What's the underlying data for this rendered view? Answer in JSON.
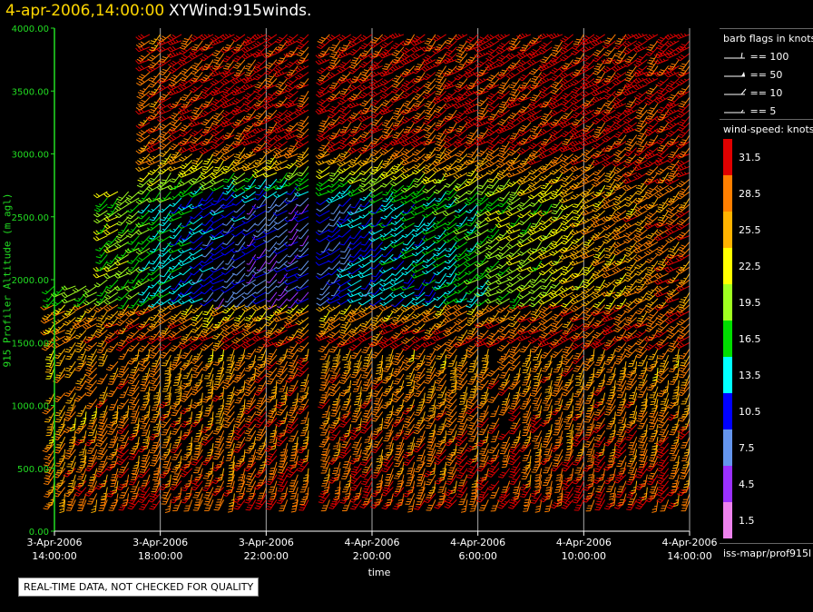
{
  "header": {
    "date_text": "4-apr-2006,14:00:00",
    "product_text": "XYWind:915winds."
  },
  "legend_barbs": {
    "title": "barb flags in knots",
    "items": [
      {
        "label": "== 100"
      },
      {
        "label": "== 50"
      },
      {
        "label": "== 10"
      },
      {
        "label": "== 5"
      }
    ]
  },
  "legend_speed": {
    "title": "wind-speed: knots",
    "bins": [
      {
        "label": "31.5",
        "color": "#e00000"
      },
      {
        "label": "28.5",
        "color": "#ff7f00"
      },
      {
        "label": "25.5",
        "color": "#ffb300"
      },
      {
        "label": "22.5",
        "color": "#ffff00"
      },
      {
        "label": "19.5",
        "color": "#a0ff20"
      },
      {
        "label": "16.5",
        "color": "#00dd00"
      },
      {
        "label": "13.5",
        "color": "#00ffff"
      },
      {
        "label": "10.5",
        "color": "#0000ff"
      },
      {
        "label": "7.5",
        "color": "#6495ed"
      },
      {
        "label": "4.5",
        "color": "#9b30ff"
      },
      {
        "label": "1.5",
        "color": "#ee82ee"
      }
    ]
  },
  "source_label": "iss-mapr/prof915l",
  "qc_note": "REAL-TIME DATA, NOT CHECKED FOR QUALITY",
  "chart_data": {
    "type": "wind-barb time-height",
    "title": "XYWind:915winds.",
    "xlabel": "time",
    "ylabel": "915 Profiler Altitude (m agl)",
    "ylim": [
      0,
      4000
    ],
    "yticks": [
      "0.00",
      "500.00",
      "1000.00",
      "1500.00",
      "2000.00",
      "2500.00",
      "3000.00",
      "3500.00",
      "4000.00"
    ],
    "xticks": [
      {
        "date": "3-Apr-2006",
        "time": "14:00:00"
      },
      {
        "date": "3-Apr-2006",
        "time": "18:00:00"
      },
      {
        "date": "3-Apr-2006",
        "time": "22:00:00"
      },
      {
        "date": "4-Apr-2006",
        "time": "2:00:00"
      },
      {
        "date": "4-Apr-2006",
        "time": "6:00:00"
      },
      {
        "date": "4-Apr-2006",
        "time": "10:00:00"
      },
      {
        "date": "4-Apr-2006",
        "time": "14:00:00"
      }
    ],
    "xlim_hours": [
      0,
      24
    ],
    "grid": "vertical lines at each x tick",
    "levels_m": [
      250,
      3950,
      50
    ],
    "data_gap_hours": [
      9.6,
      10.3
    ],
    "series": [
      {
        "time_h": [
          0,
          3,
          6,
          9,
          12,
          15,
          18,
          21,
          24
        ],
        "low_level_speed_kt": [
          28,
          31,
          30,
          31,
          31,
          30,
          31,
          31,
          30
        ]
      },
      {
        "time_h": [
          0,
          3,
          6,
          9,
          12,
          15,
          18,
          21,
          24
        ],
        "mid_level_speed_kt": [
          17,
          18,
          9,
          6,
          11,
          14,
          19,
          25,
          28
        ]
      },
      {
        "time_h": [
          0,
          3,
          6,
          9,
          12,
          15,
          18,
          21,
          24
        ],
        "upper_level_speed_kt": [
          null,
          28,
          31,
          31,
          31,
          31,
          31,
          31,
          32
        ]
      }
    ]
  }
}
